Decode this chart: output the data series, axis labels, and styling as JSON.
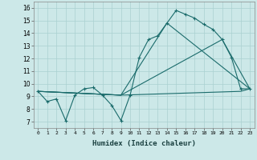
{
  "xlabel": "Humidex (Indice chaleur)",
  "xlim": [
    -0.5,
    23.5
  ],
  "ylim": [
    6.5,
    16.5
  ],
  "xticks": [
    0,
    1,
    2,
    3,
    4,
    5,
    6,
    7,
    8,
    9,
    10,
    11,
    12,
    13,
    14,
    15,
    16,
    17,
    18,
    19,
    20,
    21,
    22,
    23
  ],
  "yticks": [
    7,
    8,
    9,
    10,
    11,
    12,
    13,
    14,
    15,
    16
  ],
  "background_color": "#cce8e8",
  "grid_color": "#aad0d0",
  "line_color": "#1a6b6b",
  "lines": [
    {
      "x": [
        0,
        1,
        2,
        3,
        4,
        5,
        6,
        7,
        8,
        9,
        10,
        11,
        12,
        13,
        14,
        15,
        16,
        17,
        18,
        19,
        20,
        21,
        22,
        23
      ],
      "y": [
        9.4,
        8.6,
        8.8,
        7.1,
        9.1,
        9.6,
        9.7,
        9.1,
        8.3,
        7.1,
        9.1,
        12.1,
        13.5,
        13.8,
        14.8,
        15.8,
        15.5,
        15.2,
        14.7,
        14.3,
        13.5,
        12.1,
        9.6,
        9.6
      ],
      "marker": true
    },
    {
      "x": [
        0,
        9,
        22,
        23
      ],
      "y": [
        9.4,
        9.1,
        9.4,
        9.6
      ],
      "marker": false
    },
    {
      "x": [
        0,
        9,
        20,
        23
      ],
      "y": [
        9.4,
        9.1,
        13.5,
        9.6
      ],
      "marker": false
    },
    {
      "x": [
        0,
        9,
        14,
        23
      ],
      "y": [
        9.4,
        9.1,
        14.8,
        9.6
      ],
      "marker": false
    }
  ]
}
